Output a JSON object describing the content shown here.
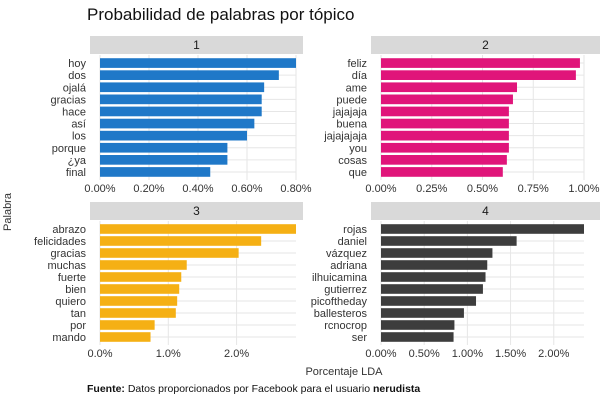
{
  "title": "Probabilidad de palabras por tópico",
  "ylabel": "Palabra",
  "xlabel": "Porcentaje LDA",
  "caption": {
    "prefix": "Fuente:",
    "text": " Datos proporcionados por Facebook para el usuario ",
    "user": "nerudista"
  },
  "chart_data": [
    {
      "type": "bar",
      "facet": "1",
      "color": "#1f78c8",
      "categories": [
        "hoy",
        "dos",
        "ojalá",
        "gracias",
        "hace",
        "así",
        "los",
        "porque",
        "¿ya",
        "final"
      ],
      "values": [
        0.008,
        0.0073,
        0.0067,
        0.0066,
        0.0066,
        0.0063,
        0.006,
        0.0052,
        0.0052,
        0.0045
      ],
      "xlim": [
        0,
        0.008
      ],
      "ticks": [
        0,
        0.002,
        0.004,
        0.006,
        0.008
      ],
      "tick_labels": [
        "0.00%",
        "0.20%",
        "0.40%",
        "0.60%",
        "0.80%"
      ]
    },
    {
      "type": "bar",
      "facet": "2",
      "color": "#e0157a",
      "categories": [
        "feliz",
        "día",
        "ame",
        "puede",
        "jajajaja",
        "buena",
        "jajajajaja",
        "you",
        "cosas",
        "que"
      ],
      "values": [
        0.0098,
        0.0096,
        0.0067,
        0.0065,
        0.0063,
        0.0063,
        0.0063,
        0.0063,
        0.0062,
        0.006
      ],
      "xlim": [
        0,
        0.01
      ],
      "ticks": [
        0,
        0.0025,
        0.005,
        0.0075,
        0.01
      ],
      "tick_labels": [
        "0.00%",
        "0.25%",
        "0.50%",
        "0.75%",
        "1.00%"
      ]
    },
    {
      "type": "bar",
      "facet": "3",
      "color": "#f5b014",
      "categories": [
        "abrazo",
        "felicidades",
        "gracias",
        "muchas",
        "fuerte",
        "bien",
        "quiero",
        "tan",
        "por",
        "mando"
      ],
      "values": [
        0.0287,
        0.0236,
        0.0203,
        0.0127,
        0.0119,
        0.0116,
        0.0113,
        0.0111,
        0.008,
        0.0074
      ],
      "xlim": [
        0,
        0.0287
      ],
      "ticks": [
        0,
        0.01,
        0.02
      ],
      "tick_labels": [
        "0.0%",
        "1.0%",
        "2.0%"
      ]
    },
    {
      "type": "bar",
      "facet": "4",
      "color": "#3d3d3d",
      "categories": [
        "rojas",
        "daniel",
        "vázquez",
        "adriana",
        "ilhuicamina",
        "gutierrez",
        "picoftheday",
        "ballesteros",
        "rcnocrop",
        "ser"
      ],
      "values": [
        0.0235,
        0.0157,
        0.0129,
        0.0123,
        0.0121,
        0.0118,
        0.011,
        0.0096,
        0.0085,
        0.0084
      ],
      "xlim": [
        0,
        0.0235
      ],
      "ticks": [
        0,
        0.005,
        0.01,
        0.015,
        0.02
      ],
      "tick_labels": [
        "0.00%",
        "0.50%",
        "1.00%",
        "1.50%",
        "2.00%"
      ]
    }
  ]
}
